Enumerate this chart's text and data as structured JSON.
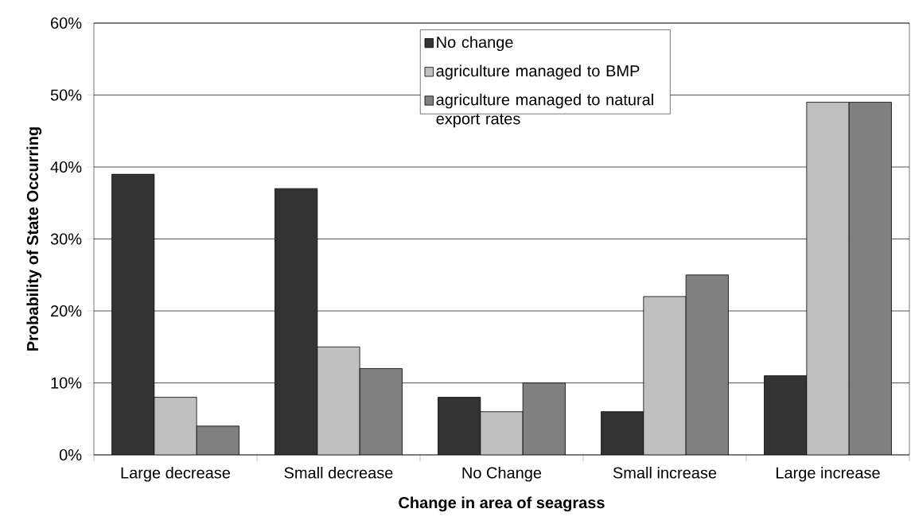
{
  "chart_data": {
    "type": "bar",
    "xlabel": "Change in area of seagrass",
    "ylabel": "Probability of State Occurring",
    "categories": [
      "Large decrease",
      "Small decrease",
      "No Change",
      "Small increase",
      "Large increase"
    ],
    "series": [
      {
        "name": "No change",
        "color": "#333333",
        "values": [
          39,
          37,
          8,
          6,
          11
        ]
      },
      {
        "name": "agriculture managed to BMP",
        "color": "#c0c0c0",
        "values": [
          8,
          15,
          6,
          22,
          49
        ]
      },
      {
        "name": "agriculture managed to natural export rates",
        "color": "#808080",
        "values": [
          4,
          12,
          10,
          25,
          49
        ]
      }
    ],
    "ylim": [
      0,
      60
    ],
    "yticks": [
      {
        "value": 0,
        "label": "0%"
      },
      {
        "value": 10,
        "label": "10%"
      },
      {
        "value": 20,
        "label": "20%"
      },
      {
        "value": 30,
        "label": "30%"
      },
      {
        "value": 40,
        "label": "40%"
      },
      {
        "value": 50,
        "label": "50%"
      },
      {
        "value": 60,
        "label": "60%"
      }
    ],
    "grid": "y",
    "legend": "top"
  }
}
